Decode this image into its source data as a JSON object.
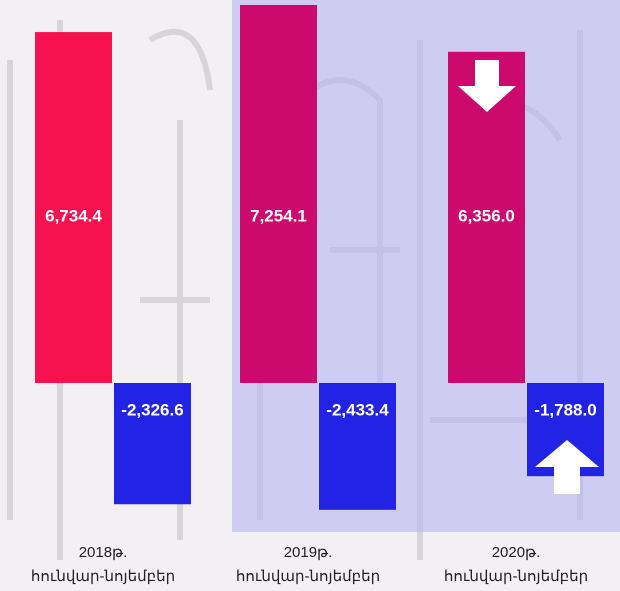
{
  "chart_data": {
    "type": "bar",
    "categories": [
      [
        "2018թ.",
        "հունվար-նոյեմբեր"
      ],
      [
        "2019թ.",
        "հունվար-նոյեմբեր"
      ],
      [
        "2020թ.",
        "հունվար-նոյեմբեր"
      ]
    ],
    "series": [
      {
        "colors": [
          "#f5124e",
          "#cc0a6e",
          "#cc0a6e"
        ],
        "values": [
          6734.4,
          7254.1,
          6356.0
        ],
        "value_labels": [
          "6,734.4",
          "7,254.1",
          "6,356.0"
        ]
      },
      {
        "color": "#2323e6",
        "values": [
          -2326.6,
          -2433.4,
          -1788.0
        ],
        "value_labels": [
          "-2,326.6",
          "-2,433.4",
          "-1,788.0"
        ]
      }
    ],
    "ylim": [
      -2600,
      7300
    ]
  }
}
